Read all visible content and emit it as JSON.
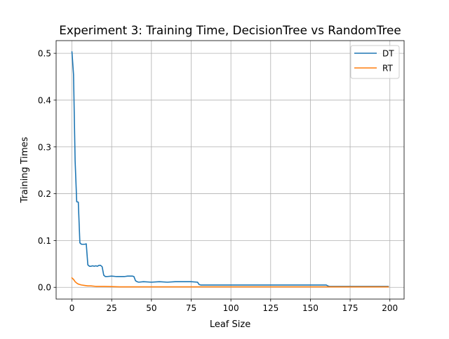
{
  "chart_data": {
    "type": "line",
    "title": "Experiment 3: Training Time, DecisionTree vs RandomTree",
    "xlabel": "Leaf Size",
    "ylabel": "Training Times",
    "xlim": [
      -9.95,
      208.95
    ],
    "ylim": [
      -0.0251,
      0.5271
    ],
    "xticks": [
      0,
      25,
      50,
      75,
      100,
      125,
      150,
      175,
      200
    ],
    "yticks": [
      0.0,
      0.1,
      0.2,
      0.3,
      0.4,
      0.5
    ],
    "xtick_labels": [
      "0",
      "25",
      "50",
      "75",
      "100",
      "125",
      "150",
      "175",
      "200"
    ],
    "ytick_labels": [
      "0.0",
      "0.1",
      "0.2",
      "0.3",
      "0.4",
      "0.5"
    ],
    "grid": true,
    "legend_position": "top-right",
    "series": [
      {
        "name": "DT",
        "color": "#1f77b4",
        "x": [
          0,
          1,
          2,
          3,
          4,
          5,
          6,
          7,
          8,
          9,
          10,
          11,
          12,
          13,
          14,
          15,
          16,
          17,
          18,
          19,
          20,
          21,
          22,
          25,
          28,
          30,
          33,
          35,
          38,
          39,
          40,
          41,
          42,
          45,
          50,
          55,
          60,
          65,
          70,
          75,
          79,
          80,
          81,
          82,
          90,
          100,
          110,
          120,
          130,
          140,
          150,
          155,
          158,
          160,
          161,
          162,
          170,
          180,
          190,
          199
        ],
        "y": [
          0.503,
          0.455,
          0.27,
          0.183,
          0.182,
          0.095,
          0.092,
          0.092,
          0.092,
          0.093,
          0.048,
          0.045,
          0.045,
          0.046,
          0.045,
          0.046,
          0.045,
          0.047,
          0.047,
          0.044,
          0.026,
          0.023,
          0.023,
          0.024,
          0.023,
          0.023,
          0.023,
          0.024,
          0.024,
          0.023,
          0.014,
          0.012,
          0.011,
          0.012,
          0.011,
          0.012,
          0.011,
          0.012,
          0.012,
          0.012,
          0.011,
          0.006,
          0.005,
          0.005,
          0.005,
          0.005,
          0.005,
          0.005,
          0.005,
          0.005,
          0.005,
          0.005,
          0.005,
          0.005,
          0.003,
          0.002,
          0.002,
          0.002,
          0.002,
          0.002
        ]
      },
      {
        "name": "RT",
        "color": "#ff7f0e",
        "x": [
          0,
          1,
          2,
          3,
          4,
          5,
          6,
          8,
          10,
          12,
          15,
          20,
          25,
          30,
          40,
          50,
          60,
          80,
          100,
          125,
          150,
          175,
          199
        ],
        "y": [
          0.02,
          0.017,
          0.012,
          0.009,
          0.007,
          0.006,
          0.005,
          0.004,
          0.003,
          0.003,
          0.002,
          0.002,
          0.0015,
          0.001,
          0.001,
          0.001,
          0.001,
          0.001,
          0.001,
          0.001,
          0.001,
          0.001,
          0.001
        ]
      }
    ]
  }
}
